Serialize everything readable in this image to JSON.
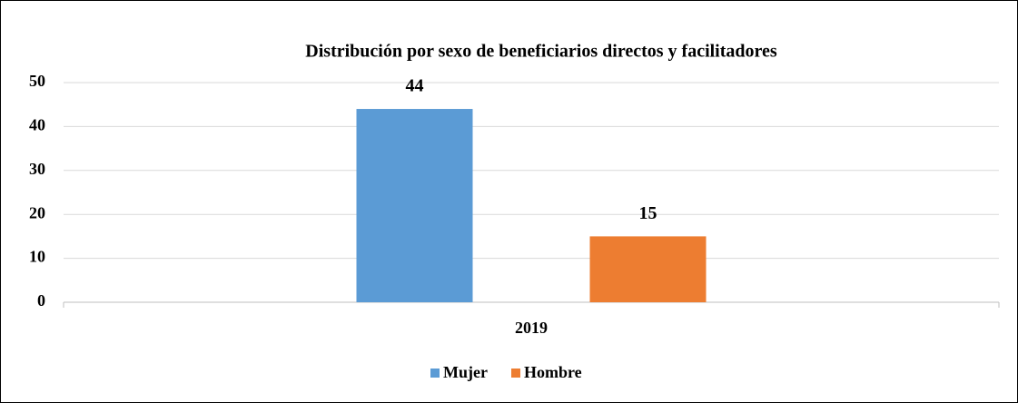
{
  "chart_data": {
    "type": "bar",
    "title": "Distribución por sexo de beneficiarios directos y facilitadores",
    "categories": [
      "2019"
    ],
    "series": [
      {
        "name": "Mujer",
        "color": "#5b9bd5",
        "values": [
          44
        ]
      },
      {
        "name": "Hombre",
        "color": "#ed7d31",
        "values": [
          15
        ]
      }
    ],
    "ylim": [
      0,
      50
    ],
    "yticks": [
      0,
      10,
      20,
      30,
      40,
      50
    ],
    "grid": true,
    "legend": "bottom"
  }
}
